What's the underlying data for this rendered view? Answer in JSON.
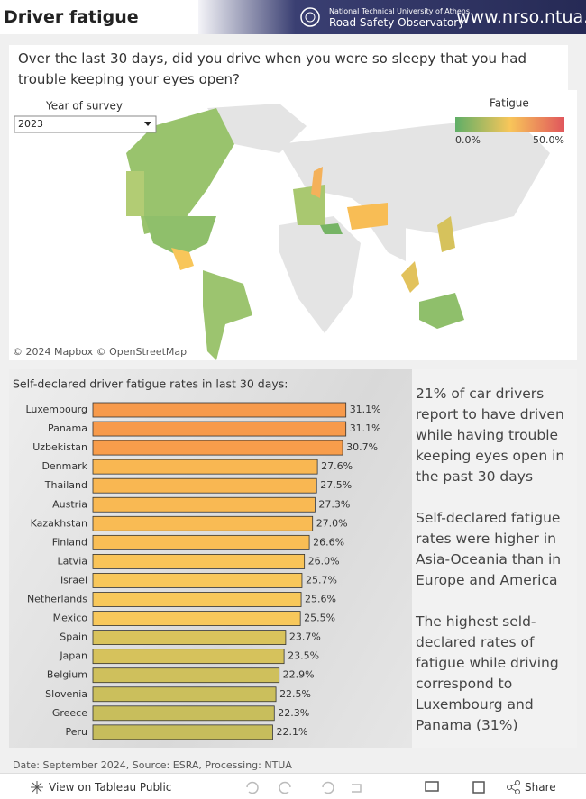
{
  "header": {
    "title": "Driver fatigue",
    "banner_line1": "National Technical University of Athens",
    "banner_line2": "Road Safety Observatory",
    "banner_url": "www.nrso.ntua.gr"
  },
  "question": "Over the last 30 days, did you drive when you were so sleepy that you had trouble keeping your eyes open?",
  "map": {
    "filter_label": "Year of survey",
    "filter_value": "2023",
    "legend_title": "Fatigue",
    "legend_min": "0.0%",
    "legend_max": "50.0%",
    "credit": "© 2024 Mapbox © OpenStreetMap"
  },
  "chart_data": {
    "type": "hbar",
    "title": "Self-declared driver fatigue rates in last 30 days:",
    "categories": [
      "Luxembourg",
      "Panama",
      "Uzbekistan",
      "Denmark",
      "Thailand",
      "Austria",
      "Kazakhstan",
      "Finland",
      "Latvia",
      "Israel",
      "Netherlands",
      "Mexico",
      "Spain",
      "Japan",
      "Belgium",
      "Slovenia",
      "Greece",
      "Peru"
    ],
    "values": [
      31.1,
      31.1,
      30.7,
      27.6,
      27.5,
      27.3,
      27.0,
      26.6,
      26.0,
      25.7,
      25.6,
      25.5,
      23.7,
      23.5,
      22.9,
      22.5,
      22.3,
      22.1
    ],
    "value_labels": [
      "31.1%",
      "31.1%",
      "30.7%",
      "27.6%",
      "27.5%",
      "27.3%",
      "27.0%",
      "26.6%",
      "26.0%",
      "25.7%",
      "25.6%",
      "25.5%",
      "23.7%",
      "23.5%",
      "22.9%",
      "22.5%",
      "22.3%",
      "22.1%"
    ],
    "colors": [
      "#f79a4b",
      "#f79a4b",
      "#f89d4b",
      "#f9b752",
      "#f9b752",
      "#f9b953",
      "#f9bb54",
      "#f9be55",
      "#f9c458",
      "#f8c75a",
      "#f8c85a",
      "#f8c85b",
      "#d9c35c",
      "#d6c25c",
      "#cfc05c",
      "#cbbf5c",
      "#c8be5c",
      "#c6bd5c"
    ],
    "xlim": [
      0,
      39
    ]
  },
  "side_text": [
    "21% of car drivers report to have driven while having trouble keeping eyes open in the past 30 days",
    "Self-declared fatigue rates were higher in Asia-Oceania than in Europe and America",
    "The highest seld-declared rates of fatigue while driving correspond to Luxembourg and Panama (31%)"
  ],
  "footer": "Date: September 2024, Source: ESRA, Processing: NTUA",
  "toolbar": {
    "view": "View on Tableau Public",
    "share": "Share"
  }
}
